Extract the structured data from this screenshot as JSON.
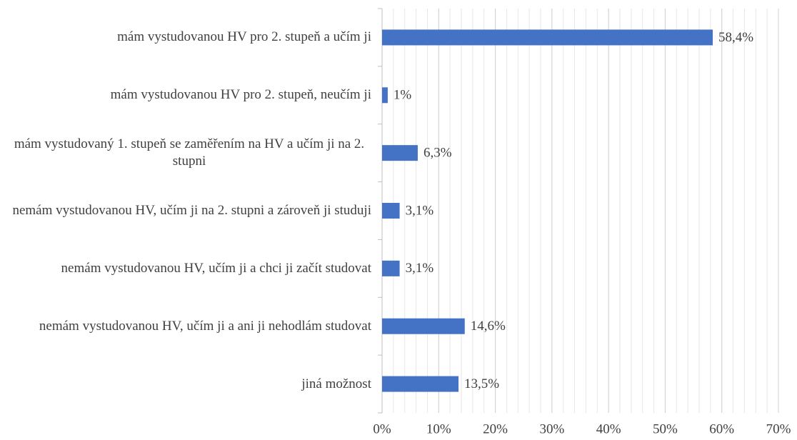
{
  "chart_data": {
    "type": "barh",
    "categories": [
      "mám vystudovanou HV pro 2. stupeň a učím ji",
      "mám vystudovanou HV pro 2. stupeň, neučím ji",
      "mám vystudovaný 1. stupeň se zaměřením na HV a učím ji na 2. stupni",
      "nemám vystudovanou HV, učím ji na 2. stupni a zároveň ji studuji",
      "nemám vystudovanou HV, učím ji a chci ji začít studovat",
      "nemám vystudovanou HV, učím ji a ani ji nehodlám studovat",
      "jiná možnost"
    ],
    "values": [
      58.4,
      1,
      6.3,
      3.1,
      3.1,
      14.6,
      13.5
    ],
    "value_labels": [
      "58,4%",
      "1%",
      "6,3%",
      "3,1%",
      "3,1%",
      "14,6%",
      "13,5%"
    ],
    "color": "#4472c4",
    "xlim": [
      0,
      70
    ],
    "xticks": [
      {
        "value": 0,
        "label": "0%"
      },
      {
        "value": 10,
        "label": "10%"
      },
      {
        "value": 20,
        "label": "20%"
      },
      {
        "value": 30,
        "label": "30%"
      },
      {
        "value": 40,
        "label": "40%"
      },
      {
        "value": 50,
        "label": "50%"
      },
      {
        "value": 60,
        "label": "60%"
      },
      {
        "value": 70,
        "label": "70%"
      }
    ],
    "grid": true,
    "minor_grid_step": 2
  }
}
